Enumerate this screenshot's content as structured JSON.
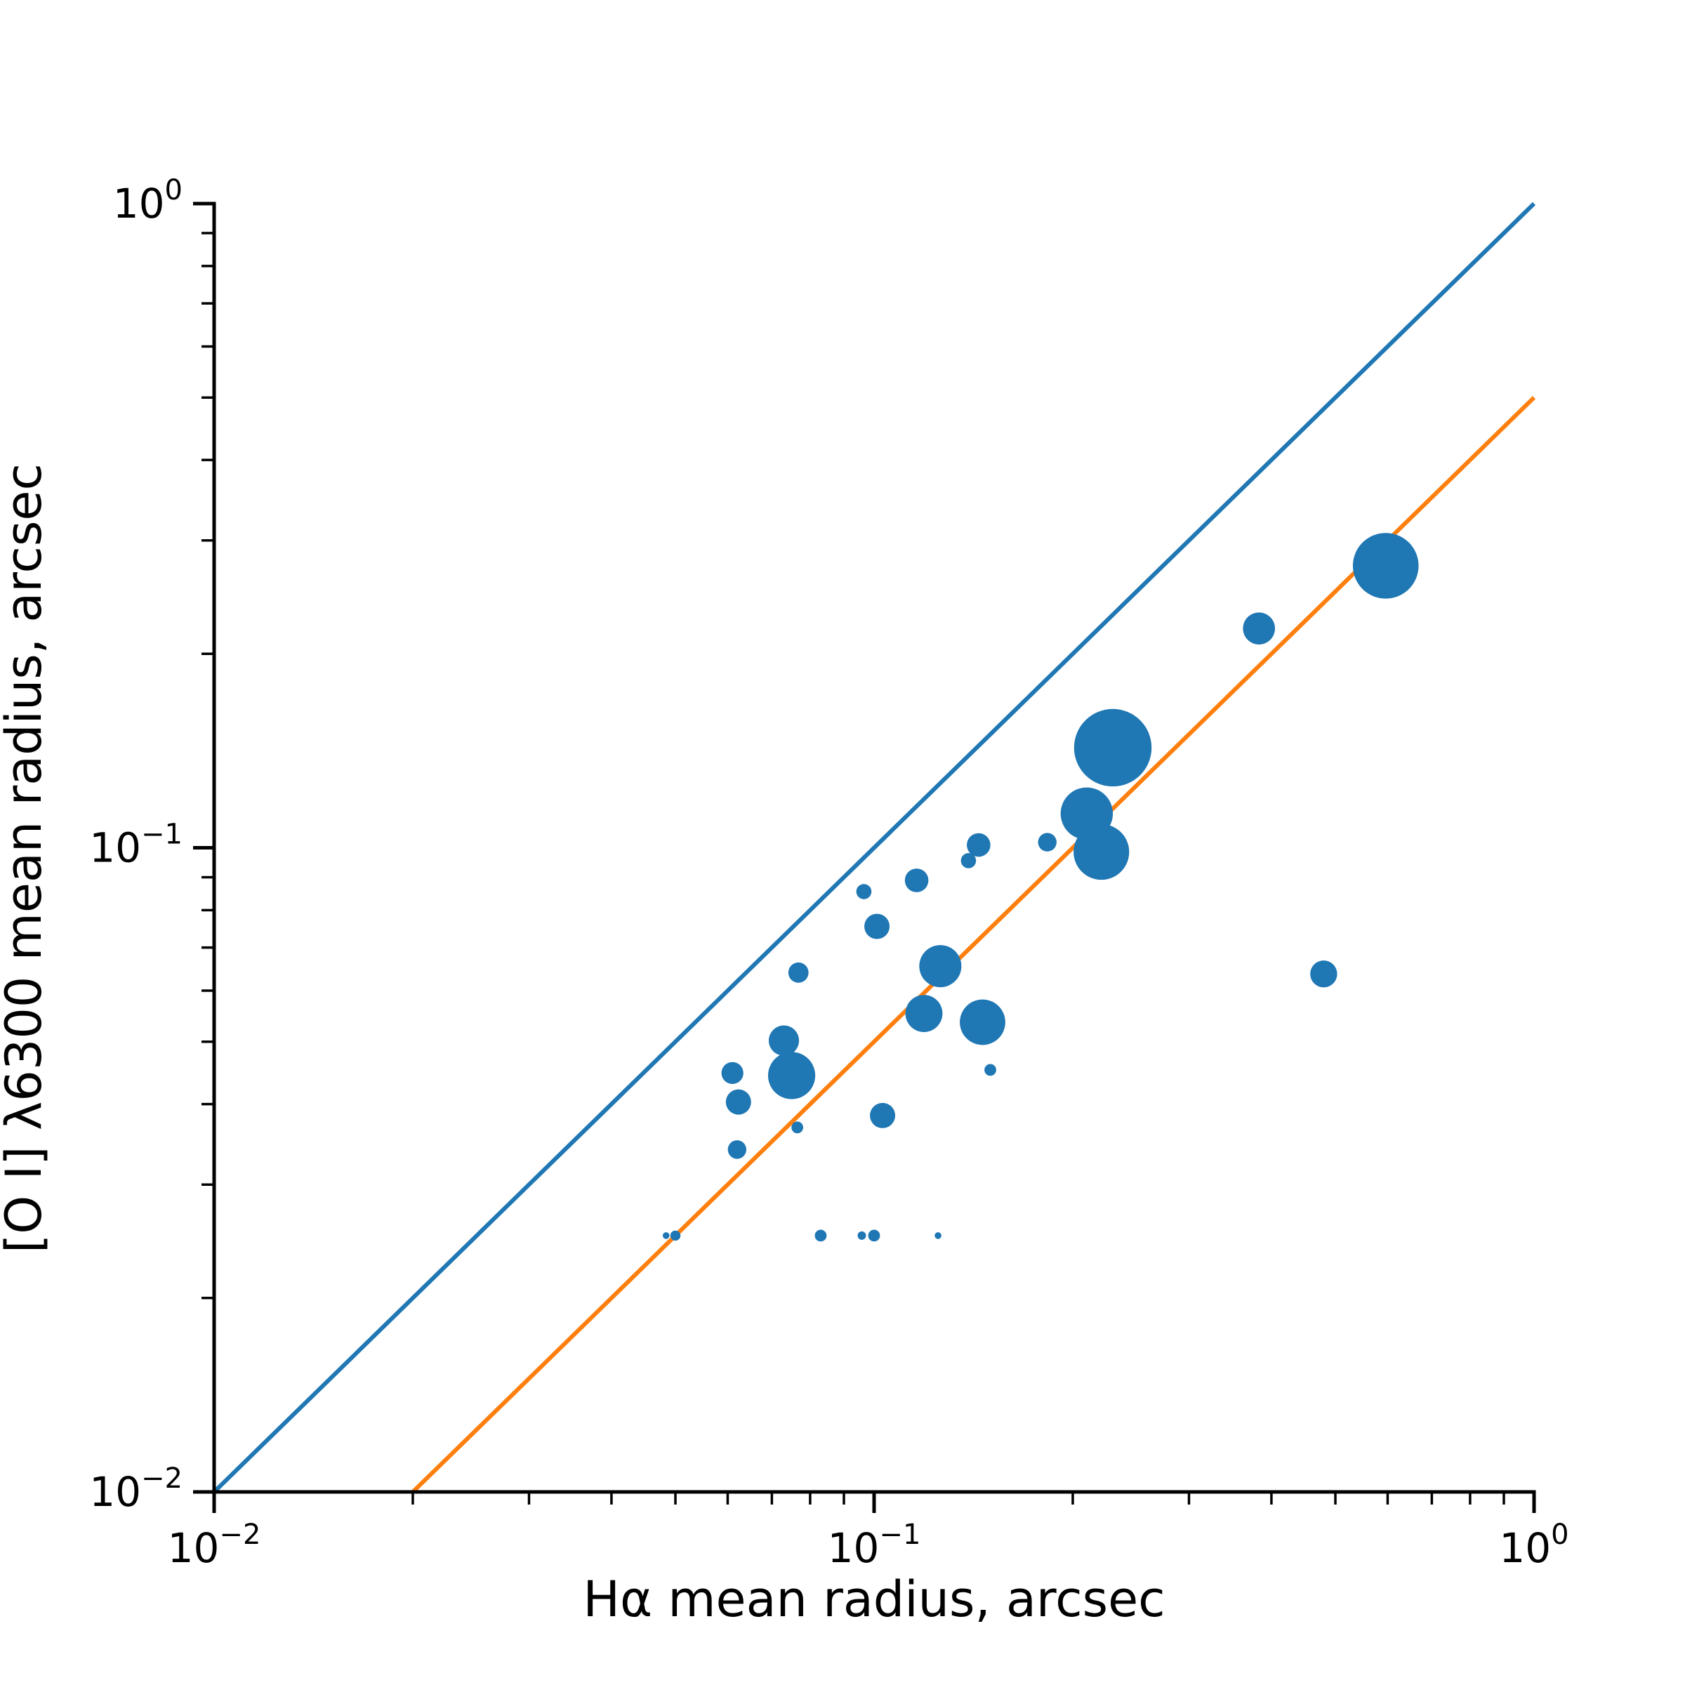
{
  "chart_data": {
    "type": "scatter",
    "title": "",
    "xlabel": "Hα mean radius, arcsec",
    "ylabel": "[O I] λ6300 mean radius, arcsec",
    "xscale": "log",
    "yscale": "log",
    "xlim": [
      0.01,
      1.0
    ],
    "ylim": [
      0.01,
      1.0
    ],
    "grid": false,
    "legend": "none",
    "x_ticks": [
      {
        "base": "10",
        "exp": "−2",
        "value": 0.01
      },
      {
        "base": "10",
        "exp": "−1",
        "value": 0.1
      },
      {
        "base": "10",
        "exp": "0",
        "value": 1.0
      }
    ],
    "y_ticks": [
      {
        "base": "10",
        "exp": "−2",
        "value": 0.01
      },
      {
        "base": "10",
        "exp": "−1",
        "value": 0.1
      },
      {
        "base": "10",
        "exp": "0",
        "value": 1.0
      }
    ],
    "lines": [
      {
        "slope": 1.0,
        "color": "#1f77b4",
        "x": [
          0.01,
          1.0
        ],
        "y": [
          0.01,
          1.0
        ]
      },
      {
        "slope": 0.5,
        "color": "#ff7f0e",
        "x": [
          0.02,
          1.0
        ],
        "y": [
          0.01,
          0.5
        ]
      }
    ],
    "points_color": "#1f77b4",
    "points": [
      {
        "x": 0.596,
        "y": 0.274,
        "size": 3.9
      },
      {
        "x": 0.383,
        "y": 0.219,
        "size": 1.9
      },
      {
        "x": 0.23,
        "y": 0.143,
        "size": 4.6
      },
      {
        "x": 0.21,
        "y": 0.113,
        "size": 3.1
      },
      {
        "x": 0.221,
        "y": 0.0985,
        "size": 3.3
      },
      {
        "x": 0.183,
        "y": 0.102,
        "size": 1.1
      },
      {
        "x": 0.144,
        "y": 0.101,
        "size": 1.4
      },
      {
        "x": 0.139,
        "y": 0.0955,
        "size": 0.9
      },
      {
        "x": 0.116,
        "y": 0.089,
        "size": 1.4
      },
      {
        "x": 0.0965,
        "y": 0.0855,
        "size": 0.9
      },
      {
        "x": 0.101,
        "y": 0.0755,
        "size": 1.5
      },
      {
        "x": 0.126,
        "y": 0.0655,
        "size": 2.5
      },
      {
        "x": 0.0768,
        "y": 0.064,
        "size": 1.2
      },
      {
        "x": 0.48,
        "y": 0.0637,
        "size": 1.6
      },
      {
        "x": 0.119,
        "y": 0.0553,
        "size": 2.2
      },
      {
        "x": 0.146,
        "y": 0.0536,
        "size": 2.7
      },
      {
        "x": 0.073,
        "y": 0.0502,
        "size": 1.8
      },
      {
        "x": 0.061,
        "y": 0.0447,
        "size": 1.3
      },
      {
        "x": 0.075,
        "y": 0.0443,
        "size": 2.8
      },
      {
        "x": 0.0623,
        "y": 0.0403,
        "size": 1.5
      },
      {
        "x": 0.15,
        "y": 0.0452,
        "size": 0.7
      },
      {
        "x": 0.103,
        "y": 0.0384,
        "size": 1.5
      },
      {
        "x": 0.0765,
        "y": 0.0368,
        "size": 0.7
      },
      {
        "x": 0.062,
        "y": 0.034,
        "size": 1.1
      },
      {
        "x": 0.0484,
        "y": 0.025,
        "size": 0.4
      },
      {
        "x": 0.05,
        "y": 0.025,
        "size": 0.6
      },
      {
        "x": 0.083,
        "y": 0.025,
        "size": 0.7
      },
      {
        "x": 0.0958,
        "y": 0.025,
        "size": 0.5
      },
      {
        "x": 0.1,
        "y": 0.025,
        "size": 0.7
      },
      {
        "x": 0.125,
        "y": 0.025,
        "size": 0.4
      }
    ]
  }
}
